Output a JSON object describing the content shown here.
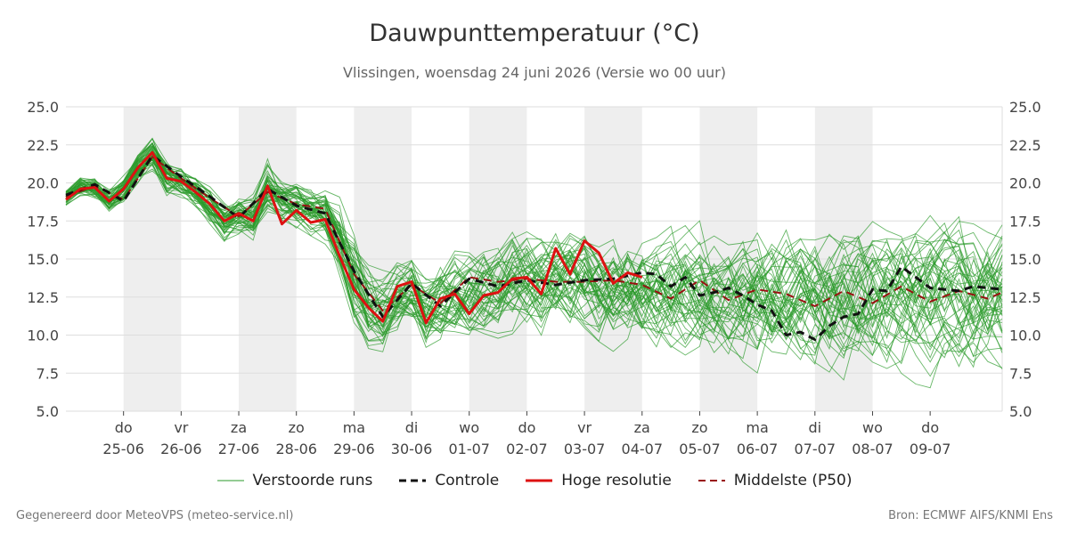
{
  "chart_data": {
    "type": "line",
    "title": "Dauwpunttemperatuur (°C)",
    "subtitle": "Vlissingen, woensdag 24 juni 2026 (Versie wo 00 uur)",
    "ylim": [
      5.0,
      25.0
    ],
    "yticks": [
      "5.0",
      "7.5",
      "10.0",
      "12.5",
      "15.0",
      "17.5",
      "20.0",
      "22.5",
      "25.0"
    ],
    "xlim_days": [
      0,
      16.25
    ],
    "x_unit": "days since 24-06 00 uur",
    "day_ticks": [
      {
        "day": "do",
        "date": "25-06"
      },
      {
        "day": "vr",
        "date": "26-06"
      },
      {
        "day": "za",
        "date": "27-06"
      },
      {
        "day": "zo",
        "date": "28-06"
      },
      {
        "day": "ma",
        "date": "29-06"
      },
      {
        "day": "di",
        "date": "30-06"
      },
      {
        "day": "wo",
        "date": "01-07"
      },
      {
        "day": "do",
        "date": "02-07"
      },
      {
        "day": "vr",
        "date": "03-07"
      },
      {
        "day": "za",
        "date": "04-07"
      },
      {
        "day": "zo",
        "date": "05-07"
      },
      {
        "day": "ma",
        "date": "06-07"
      },
      {
        "day": "di",
        "date": "07-07"
      },
      {
        "day": "wo",
        "date": "08-07"
      },
      {
        "day": "do",
        "date": "09-07"
      }
    ],
    "shaded_days": [
      1,
      3,
      5,
      7,
      9,
      11,
      13
    ],
    "grid": true,
    "legend_position": "bottom",
    "series": [
      {
        "name": "Hoge resolutie",
        "color": "#dd1111",
        "style": "solid",
        "x": [
          0,
          0.25,
          0.5,
          0.75,
          1,
          1.25,
          1.5,
          1.75,
          2,
          2.25,
          2.5,
          2.75,
          3,
          3.25,
          3.5,
          3.75,
          4,
          4.25,
          4.5,
          4.75,
          5,
          5.25,
          5.5,
          5.75,
          6,
          6.25,
          6.5,
          6.75,
          7,
          7.25,
          7.5,
          7.75,
          8,
          8.25,
          8.5,
          8.75,
          9,
          9.25,
          9.5,
          9.75,
          10
        ],
        "values": [
          18.9,
          19.6,
          19.7,
          18.8,
          19.6,
          21.0,
          22.0,
          20.3,
          20.1,
          19.4,
          18.6,
          17.5,
          18.0,
          17.5,
          19.8,
          17.3,
          18.2,
          17.4,
          17.6,
          15.2,
          13.0,
          11.8,
          10.9,
          13.2,
          13.5,
          10.8,
          12.4,
          12.7,
          11.4,
          12.6,
          12.8,
          13.7,
          13.8,
          12.7,
          15.7,
          14.0,
          16.2,
          15.4,
          13.4,
          14.1,
          13.8
        ]
      },
      {
        "name": "Middelste (P50)",
        "color": "#991111",
        "style": "dashed",
        "x": [
          0,
          0.5,
          1,
          1.5,
          2,
          2.5,
          3,
          3.5,
          4,
          4.5,
          5,
          5.5,
          6,
          6.5,
          7,
          7.5,
          8,
          8.5,
          9,
          9.5,
          10,
          10.5,
          11,
          11.5,
          12,
          12.5,
          13,
          13.5,
          14,
          14.5,
          15,
          15.5,
          16,
          16.25
        ],
        "values": [
          19.1,
          19.8,
          18.9,
          21.7,
          20.3,
          19.0,
          17.8,
          19.4,
          18.6,
          18.3,
          14.0,
          11.6,
          13.3,
          12.1,
          13.8,
          13.5,
          13.7,
          13.5,
          13.5,
          13.6,
          13.3,
          12.4,
          13.6,
          12.3,
          13.0,
          12.7,
          11.9,
          12.9,
          12.1,
          13.2,
          12.2,
          12.9,
          12.4,
          12.8
        ]
      },
      {
        "name": "Controle",
        "color": "#111111",
        "style": "dashed",
        "x": [
          0,
          0.5,
          1,
          1.5,
          2,
          2.5,
          3,
          3.5,
          4,
          4.5,
          5,
          5.5,
          6,
          6.5,
          7,
          7.5,
          8,
          8.5,
          9,
          9.5,
          10,
          10.25,
          10.5,
          10.75,
          11,
          11.25,
          11.5,
          11.75,
          12,
          12.25,
          12.5,
          12.75,
          13,
          13.25,
          13.5,
          13.75,
          14,
          14.25,
          14.5,
          14.75,
          15,
          15.25,
          15.5,
          15.75,
          16,
          16.25
        ],
        "values": [
          19.2,
          19.9,
          18.8,
          21.8,
          20.4,
          19.1,
          17.7,
          19.6,
          18.5,
          18.0,
          14.2,
          11.2,
          13.4,
          11.9,
          13.7,
          13.2,
          13.6,
          13.3,
          13.6,
          13.7,
          14.1,
          14.0,
          13.2,
          13.8,
          12.6,
          12.8,
          13.1,
          12.6,
          12.0,
          11.6,
          10.0,
          10.2,
          9.7,
          10.6,
          11.2,
          11.4,
          13.0,
          12.9,
          14.5,
          13.8,
          13.1,
          13.0,
          12.9,
          13.2,
          13.1,
          13.0
        ]
      }
    ],
    "ensemble": {
      "name": "Verstoorde runs",
      "color": "#2a9a2a",
      "members": 50,
      "center": [
        19.0,
        19.7,
        19.6,
        18.8,
        19.5,
        20.9,
        21.8,
        20.2,
        20.0,
        19.3,
        18.4,
        17.4,
        17.8,
        17.8,
        19.8,
        18.8,
        18.5,
        18.0,
        17.8,
        16.2,
        13.8,
        12.0,
        11.6,
        12.6,
        13.0,
        11.6,
        12.3,
        12.8,
        12.6,
        13.0,
        13.3,
        13.7,
        13.7,
        13.3,
        13.7,
        13.8,
        13.6,
        13.0,
        12.8,
        13.2,
        13.2,
        13.0,
        12.8,
        12.6,
        12.6,
        12.4,
        12.2,
        12.2,
        12.4,
        12.4,
        12.6,
        12.6,
        12.4,
        12.3,
        12.4,
        12.5,
        12.4,
        12.4,
        12.5,
        12.4,
        12.4,
        12.5,
        12.4,
        12.4,
        12.6,
        12.6
      ],
      "spread": [
        0.5,
        0.5,
        0.5,
        0.6,
        0.6,
        0.6,
        0.7,
        0.7,
        0.7,
        0.8,
        0.8,
        0.8,
        0.9,
        1.0,
        1.2,
        1.0,
        1.0,
        1.0,
        1.1,
        1.6,
        2.0,
        1.8,
        1.6,
        1.6,
        1.6,
        1.7,
        1.8,
        1.8,
        1.9,
        1.9,
        2.0,
        2.0,
        2.0,
        2.1,
        2.1,
        2.2,
        2.2,
        2.3,
        2.3,
        2.4,
        2.4,
        2.5,
        2.5,
        2.5,
        2.6,
        2.6,
        2.6,
        2.7,
        2.7,
        2.7,
        2.8,
        2.8,
        2.8,
        2.8,
        2.9,
        2.9,
        2.9,
        2.9,
        3.0,
        3.0,
        3.0,
        3.0,
        3.0,
        3.0,
        3.0,
        3.0
      ]
    }
  },
  "legend": {
    "ensemble": "Verstoorde runs",
    "control": "Controle",
    "hires": "Hoge resolutie",
    "median": "Middelste (P50)"
  },
  "footer": {
    "left": "Gegenereerd door MeteoVPS (meteo-service.nl)",
    "right": "Bron: ECMWF AIFS/KNMI Ens"
  }
}
